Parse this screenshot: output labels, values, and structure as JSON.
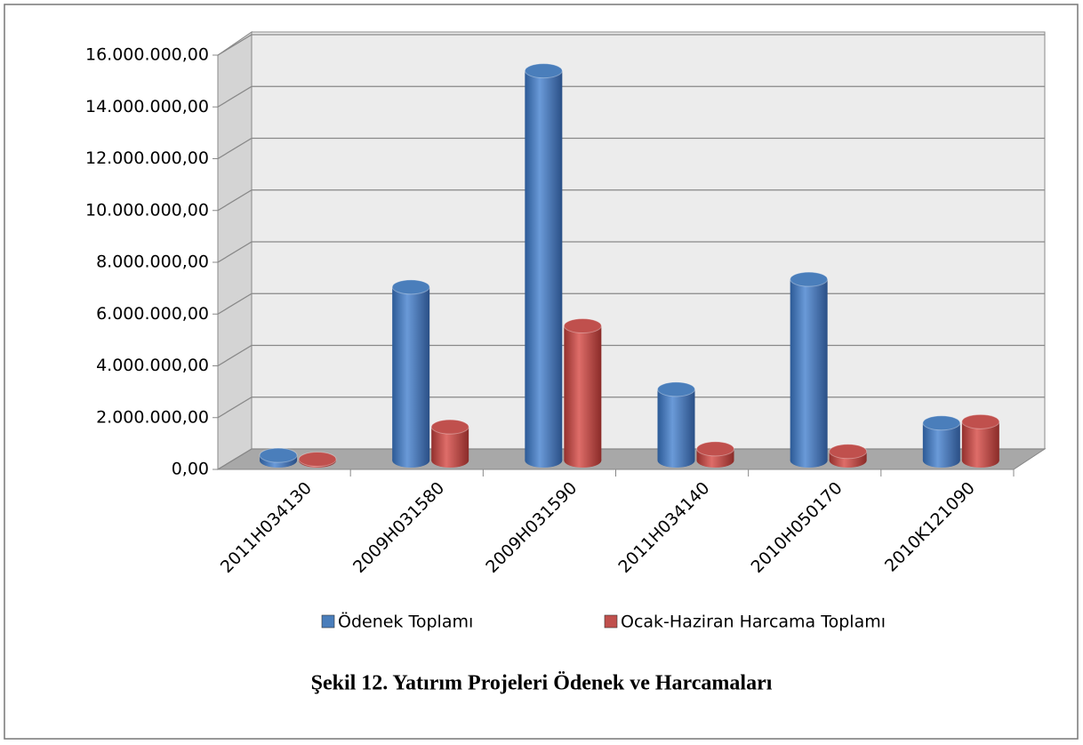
{
  "chart_data": {
    "type": "bar3d",
    "categories": [
      "2011H034130",
      "2009H031580",
      "2009H031590",
      "2011H034140",
      "2010H050170",
      "2010K121090"
    ],
    "series": [
      {
        "name": "Ödenek Toplamı",
        "color": "#4a7ebb",
        "values": [
          200000,
          6700000,
          15050000,
          2750000,
          7000000,
          1450000
        ]
      },
      {
        "name": "Ocak-Haziran Harcama Toplamı",
        "color": "#c0504d",
        "values": [
          50000,
          1300000,
          5200000,
          450000,
          350000,
          1500000
        ]
      }
    ],
    "ylim": [
      0,
      16000000
    ],
    "yticks": [
      {
        "value": 0,
        "label": "0,00"
      },
      {
        "value": 2000000,
        "label": "2.000.000,00"
      },
      {
        "value": 4000000,
        "label": "4.000.000,00"
      },
      {
        "value": 6000000,
        "label": "6.000.000,00"
      },
      {
        "value": 8000000,
        "label": "8.000.000,00"
      },
      {
        "value": 10000000,
        "label": "10.000.000,00"
      },
      {
        "value": 12000000,
        "label": "12.000.000,00"
      },
      {
        "value": 14000000,
        "label": "14.000.000,00"
      },
      {
        "value": 16000000,
        "label": "16.000.000,00"
      }
    ],
    "grid": true,
    "caption": "Şekil 12. Yatırım Projeleri Ödenek ve Harcamaları"
  }
}
